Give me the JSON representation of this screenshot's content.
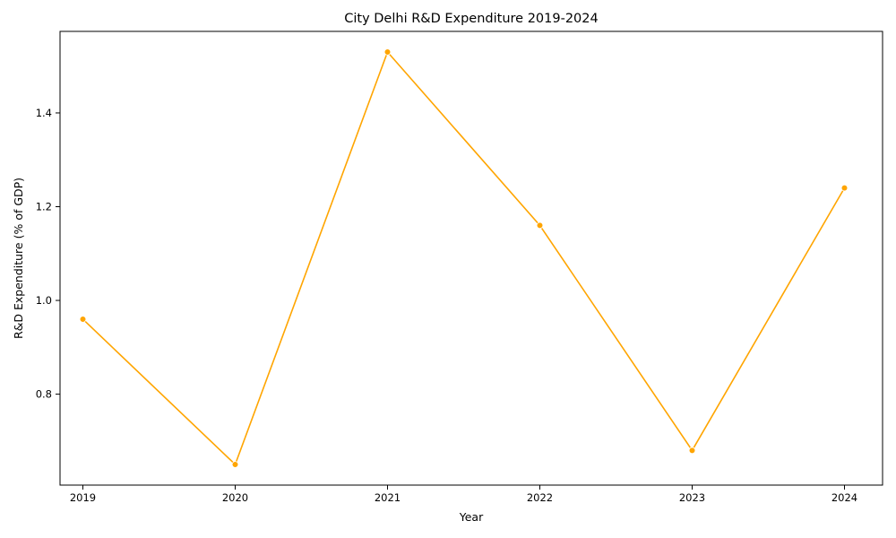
{
  "chart_data": {
    "type": "line",
    "title": "City Delhi R&D Expenditure 2019-2024",
    "xlabel": "Year",
    "ylabel": "R&D Expenditure (% of GDP)",
    "x": [
      2019,
      2020,
      2021,
      2022,
      2023,
      2024
    ],
    "series": [
      {
        "values": [
          0.96,
          0.65,
          1.53,
          1.16,
          0.68,
          1.24
        ]
      }
    ],
    "xlim": [
      2018.85,
      2024.25
    ],
    "ylim": [
      0.606,
      1.574
    ],
    "yticks": [
      0.8,
      1.0,
      1.2,
      1.4
    ],
    "ytick_labels": [
      "0.8",
      "1.0",
      "1.2",
      "1.4"
    ],
    "xtick_labels": [
      "2019",
      "2020",
      "2021",
      "2022",
      "2023",
      "2024"
    ],
    "line_color": "#FFA500",
    "marker": "circle",
    "grid": false,
    "legend": "none"
  }
}
